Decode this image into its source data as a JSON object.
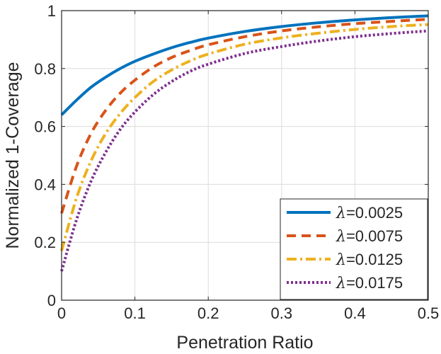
{
  "chart_data": {
    "type": "line",
    "title": "",
    "xlabel": "Penetration Ratio",
    "ylabel": "Normalized 1-Coverage",
    "xlim": [
      0,
      0.5
    ],
    "ylim": [
      0,
      1
    ],
    "grid": true,
    "x_ticks": [
      0,
      0.1,
      0.2,
      0.3,
      0.4,
      0.5
    ],
    "x_tick_labels": [
      "0",
      "0.1",
      "0.2",
      "0.3",
      "0.4",
      "0.5"
    ],
    "y_ticks": [
      0,
      0.2,
      0.4,
      0.6,
      0.8,
      1
    ],
    "y_tick_labels": [
      "0",
      "0.2",
      "0.4",
      "0.6",
      "0.8",
      "1"
    ],
    "legend_position": "bottom-right",
    "x": [
      0,
      0.02,
      0.04,
      0.06,
      0.08,
      0.1,
      0.125,
      0.15,
      0.175,
      0.2,
      0.25,
      0.3,
      0.35,
      0.4,
      0.45,
      0.5
    ],
    "series": [
      {
        "name": "λ=0.0025",
        "legend_label": "=0.0025",
        "color": "#0072BD",
        "dash": "solid",
        "values": [
          0.64,
          0.69,
          0.735,
          0.77,
          0.8,
          0.825,
          0.85,
          0.872,
          0.89,
          0.905,
          0.928,
          0.945,
          0.958,
          0.968,
          0.976,
          0.982
        ]
      },
      {
        "name": "λ=0.0075",
        "legend_label": "=0.0075",
        "color": "#D95319",
        "dash": "dashed",
        "values": [
          0.3,
          0.46,
          0.575,
          0.655,
          0.715,
          0.76,
          0.805,
          0.838,
          0.862,
          0.882,
          0.91,
          0.93,
          0.944,
          0.955,
          0.963,
          0.97
        ]
      },
      {
        "name": "λ=0.0125",
        "legend_label": "=0.0125",
        "color": "#EDB120",
        "dash": "dashdot",
        "values": [
          0.17,
          0.35,
          0.48,
          0.575,
          0.645,
          0.7,
          0.755,
          0.795,
          0.826,
          0.85,
          0.884,
          0.906,
          0.922,
          0.935,
          0.945,
          0.952
        ]
      },
      {
        "name": "λ=0.0175",
        "legend_label": "=0.0175",
        "color": "#7E2F8E",
        "dash": "dotted",
        "values": [
          0.1,
          0.275,
          0.41,
          0.51,
          0.59,
          0.65,
          0.71,
          0.755,
          0.79,
          0.815,
          0.852,
          0.876,
          0.895,
          0.91,
          0.921,
          0.93
        ]
      }
    ],
    "legend_symbol": "λ"
  }
}
